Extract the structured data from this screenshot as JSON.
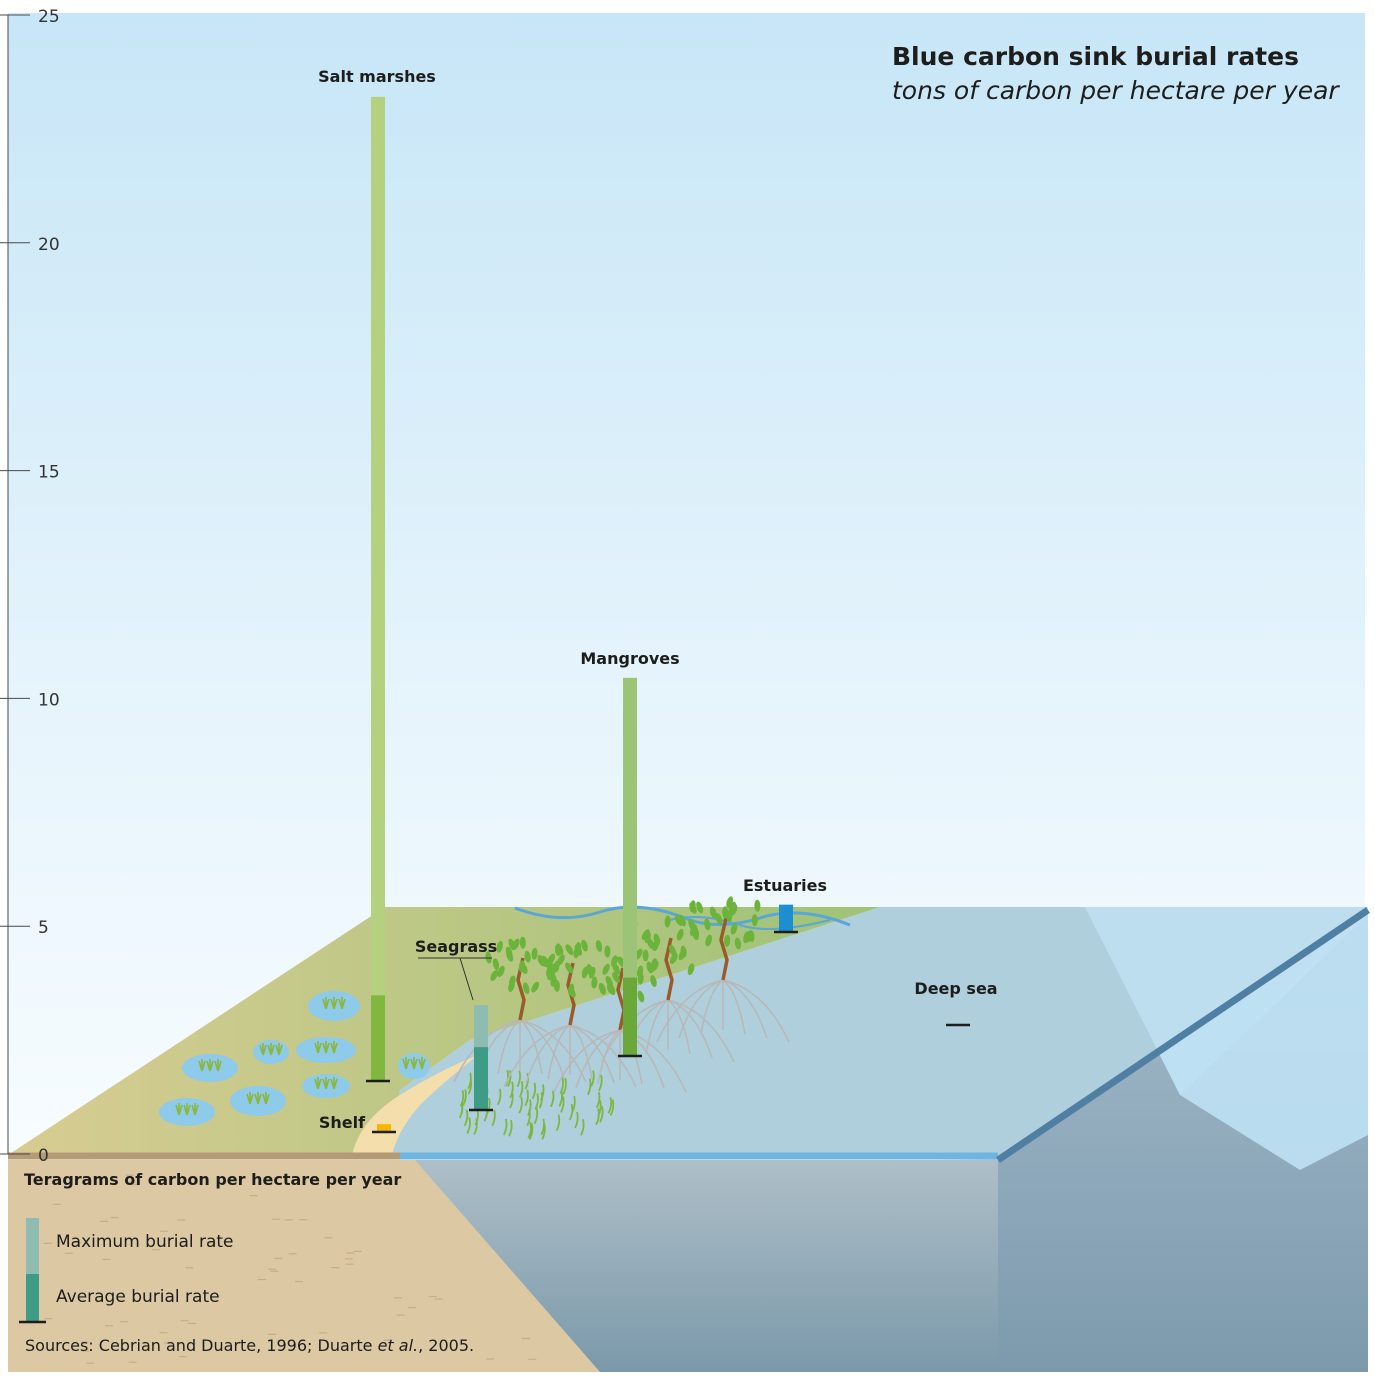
{
  "chart_data": {
    "type": "bar",
    "title": "Blue carbon sink burial rates",
    "subtitle": "tons of carbon per hectare per year",
    "ylabel": "Teragrams of carbon per hectare per year",
    "ylim": [
      0,
      25
    ],
    "yticks": [
      "0",
      "5",
      "10",
      "15",
      "20",
      "25"
    ],
    "grid": false,
    "categories": [
      "Shelf",
      "Seagrass",
      "Salt marshes",
      "Mangroves",
      "Estuaries",
      "Deep sea"
    ],
    "series": [
      {
        "name": "Maximum burial rate",
        "values": [
          0.17,
          2.3,
          21.6,
          8.3,
          0.6,
          0.03
        ]
      },
      {
        "name": "Average burial rate",
        "values": [
          0.17,
          1.38,
          1.88,
          1.72,
          0.45,
          0.02
        ]
      }
    ],
    "colors": {
      "Shelf": {
        "max": "#f5b800",
        "avg": "#f5b800"
      },
      "Seagrass": {
        "max": "#8fbcb0",
        "avg": "#3e9b86"
      },
      "Salt marshes": {
        "max": "#b3d17e",
        "avg": "#80b83f"
      },
      "Mangroves": {
        "max": "#9cc477",
        "avg": "#6aa83a"
      },
      "Estuaries": {
        "max": "#1d8fd1",
        "avg": "#1d8fd1"
      },
      "Deep sea": {
        "max": "#8fb6d9",
        "avg": "#8fb6d9"
      }
    }
  },
  "legend": {
    "title": "Teragrams of carbon per hectare per year",
    "items": [
      {
        "label": "Maximum burial rate",
        "color": "#8fbcb0"
      },
      {
        "label": "Average burial rate",
        "color": "#3e9b86"
      }
    ]
  },
  "sources": {
    "prefix": "Sources: Cebrian and Duarte, 1996; Duarte ",
    "italic": "et al.",
    "suffix": ", 2005."
  }
}
